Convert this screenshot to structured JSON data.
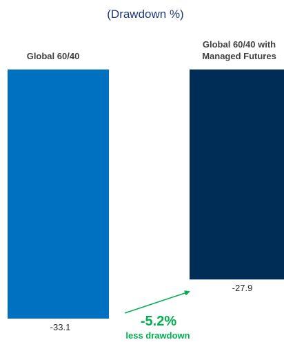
{
  "chart_data": {
    "type": "bar",
    "subtitle": "(Drawdown %)",
    "categories": [
      [
        "Global 60/40"
      ],
      [
        "Global 60/40 with",
        "Managed Futures"
      ]
    ],
    "values": [
      -33.1,
      -27.9
    ],
    "value_labels": [
      "-33.1",
      "-27.9"
    ],
    "colors": [
      "#0070c0",
      "#002d55"
    ],
    "annotation": {
      "value": "-5.2%",
      "text": "less drawdown",
      "color": "#00b050"
    },
    "ylim": [
      -33.1,
      0
    ],
    "grid": false,
    "legend": "none"
  },
  "colors": {
    "subtitle": "#1f3a7a",
    "category_label": "#404040",
    "value_label": "#262626"
  }
}
